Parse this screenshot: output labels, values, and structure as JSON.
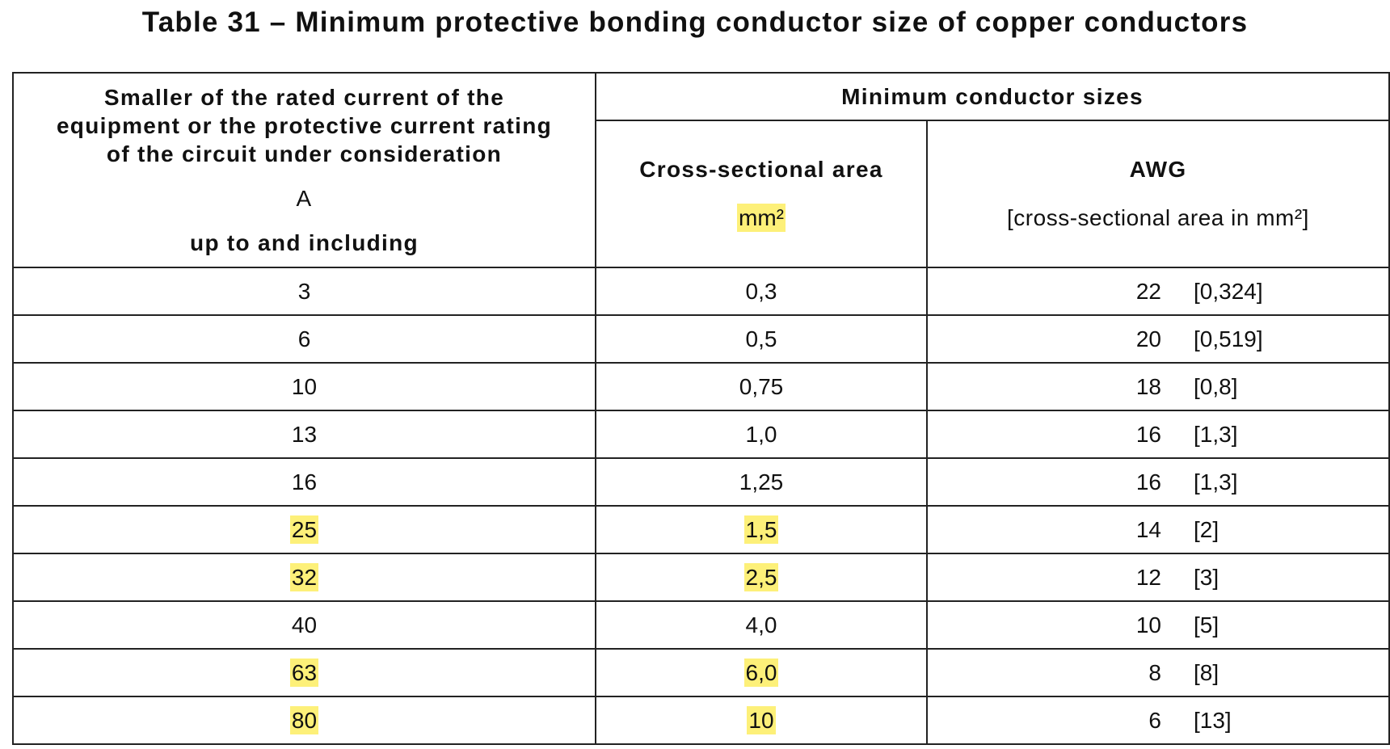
{
  "title": "Table 31 – Minimum protective bonding conductor size of copper conductors",
  "table": {
    "header": {
      "col1": {
        "lines": [
          "Smaller of the rated current of the",
          "equipment or the protective current rating",
          "of the circuit under consideration"
        ],
        "unit": "A",
        "note": "up to and including"
      },
      "group": "Minimum conductor sizes",
      "col2": {
        "label": "Cross-sectional area",
        "unit": "mm²",
        "unit_highlight": true
      },
      "col3": {
        "label": "AWG",
        "unit": "[cross-sectional area in mm²]"
      }
    },
    "rows": [
      {
        "current": "3",
        "area": "0,3",
        "awg": "22",
        "awg_area": "[0,324]",
        "highlight": false
      },
      {
        "current": "6",
        "area": "0,5",
        "awg": "20",
        "awg_area": "[0,519]",
        "highlight": false
      },
      {
        "current": "10",
        "area": "0,75",
        "awg": "18",
        "awg_area": "[0,8]",
        "highlight": false
      },
      {
        "current": "13",
        "area": "1,0",
        "awg": "16",
        "awg_area": "[1,3]",
        "highlight": false
      },
      {
        "current": "16",
        "area": "1,25",
        "awg": "16",
        "awg_area": "[1,3]",
        "highlight": false
      },
      {
        "current": "25",
        "area": "1,5",
        "awg": "14",
        "awg_area": "[2]",
        "highlight": true
      },
      {
        "current": "32",
        "area": "2,5",
        "awg": "12",
        "awg_area": "[3]",
        "highlight": true
      },
      {
        "current": "40",
        "area": "4,0",
        "awg": "10",
        "awg_area": "[5]",
        "highlight": false
      },
      {
        "current": "63",
        "area": "6,0",
        "awg": "8",
        "awg_area": "[8]",
        "highlight": true
      },
      {
        "current": "80",
        "area": "10",
        "awg": "6",
        "awg_area": "[13]",
        "highlight": true
      }
    ]
  }
}
